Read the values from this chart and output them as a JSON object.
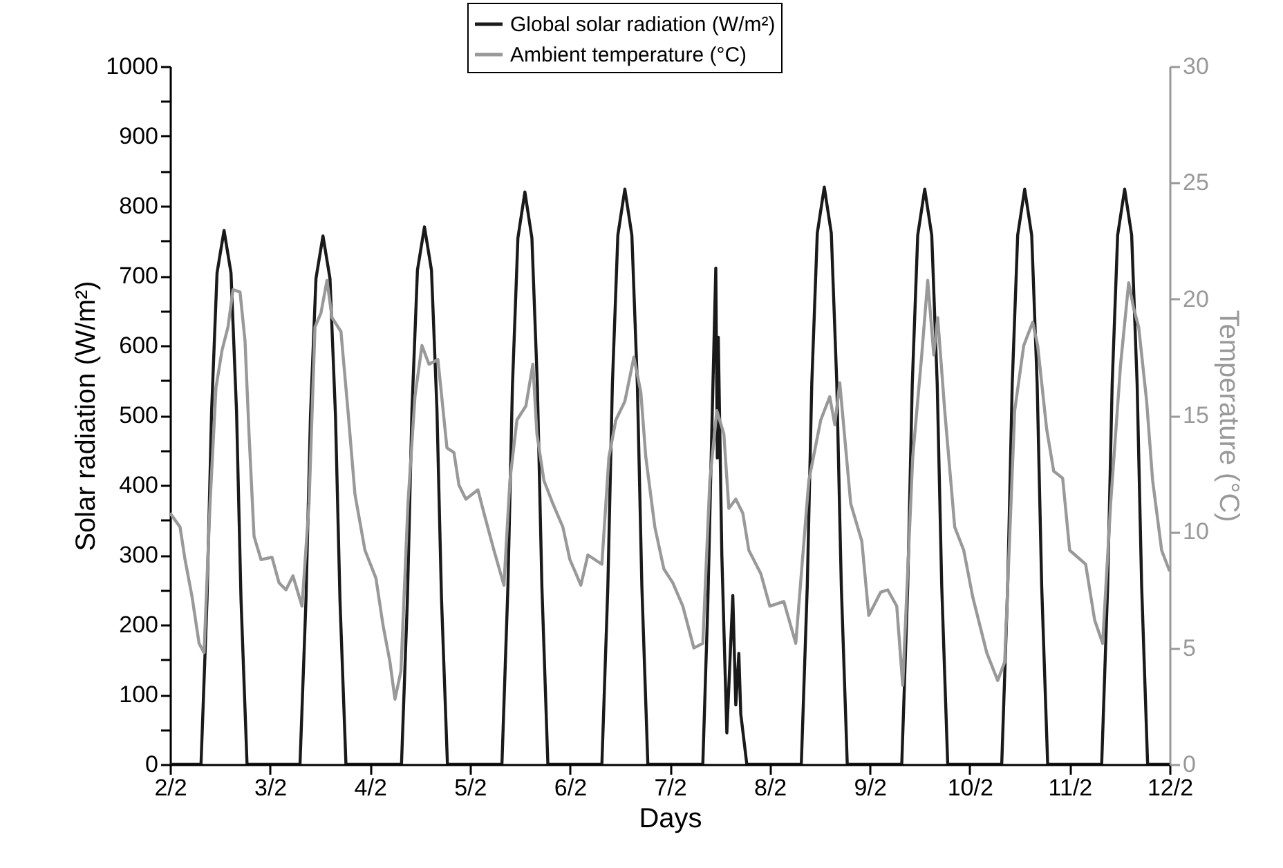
{
  "chart_data": {
    "type": "line",
    "xlabel": "Days",
    "ylabel": "Solar radiation (W/m²)",
    "y2label": "Temperature (°C)",
    "xlim": [
      "--02-02",
      "--02-12"
    ],
    "xticks": [
      {
        "value": "--02-02",
        "label": "2/2"
      },
      {
        "value": "--02-03",
        "label": "3/2"
      },
      {
        "value": "--02-04",
        "label": "4/2"
      },
      {
        "value": "--02-05",
        "label": "5/2"
      },
      {
        "value": "--02-06",
        "label": "6/2"
      },
      {
        "value": "--02-07",
        "label": "7/2"
      },
      {
        "value": "--02-08",
        "label": "8/2"
      },
      {
        "value": "--02-09",
        "label": "9/2"
      },
      {
        "value": "--02-10",
        "label": "10/2"
      },
      {
        "value": "--02-11",
        "label": "11/2"
      },
      {
        "value": "--02-12",
        "label": "12/2"
      }
    ],
    "ylim": [
      0,
      1000
    ],
    "yticks": [
      0,
      {
        "value": 50,
        "label": null
      },
      100,
      {
        "value": 150,
        "label": null
      },
      200,
      {
        "value": 250,
        "label": null
      },
      300,
      {
        "value": 350,
        "label": null
      },
      400,
      {
        "value": 450,
        "label": null
      },
      500,
      {
        "value": 550,
        "label": null
      },
      600,
      {
        "value": 650,
        "label": null
      },
      700,
      {
        "value": 750,
        "label": null
      },
      800,
      {
        "value": 850,
        "label": null
      },
      900,
      {
        "value": 950,
        "label": null
      },
      1000
    ],
    "y2lim": [
      0,
      30
    ],
    "y2ticks": [
      0,
      5,
      10,
      15,
      20,
      25,
      30
    ],
    "grid": false,
    "legend": "top",
    "marker": "none",
    "line_style": "solid",
    "series": [
      {
        "name": "Global solar radiation (W/m²)",
        "color": "#1a1a1a",
        "axis": "y",
        "x": [
          "--02-02T00:00",
          "--02-02T07:26",
          "--02-02T08:53",
          "--02-02T09:58",
          "--02-02T11:17",
          "--02-02T12:58",
          "--02-02T14:38",
          "--02-02T15:58",
          "--02-02T17:02",
          "--02-02T18:29",
          "--02-03T07:12",
          "--02-03T08:38",
          "--02-03T09:43",
          "--02-03T11:02",
          "--02-03T12:43",
          "--02-03T14:24",
          "--02-03T15:43",
          "--02-03T16:48",
          "--02-03T18:14",
          "--02-04T07:34",
          "--02-04T09:00",
          "--02-04T10:05",
          "--02-04T11:24",
          "--02-04T13:05",
          "--02-04T14:46",
          "--02-04T16:05",
          "--02-04T17:10",
          "--02-04T18:36",
          "--02-05T07:41",
          "--02-05T09:07",
          "--02-05T10:12",
          "--02-05T11:31",
          "--02-05T13:12",
          "--02-05T14:53",
          "--02-05T16:12",
          "--02-05T17:17",
          "--02-05T18:43",
          "--02-06T07:41",
          "--02-06T09:07",
          "--02-06T10:12",
          "--02-06T11:31",
          "--02-06T13:12",
          "--02-06T14:53",
          "--02-06T16:12",
          "--02-06T17:17",
          "--02-06T18:43",
          "--02-07T07:55",
          "--02-07T09:07",
          "--02-07T10:05",
          "--02-07T11:02",
          "--02-07T11:24",
          "--02-07T11:38",
          "--02-07T12:29",
          "--02-07T13:41",
          "--02-07T15:07",
          "--02-07T15:50",
          "--02-07T16:34",
          "--02-07T17:02",
          "--02-07T18:29",
          "--02-08T07:34",
          "--02-08T09:00",
          "--02-08T10:05",
          "--02-08T11:24",
          "--02-08T13:05",
          "--02-08T14:46",
          "--02-08T16:05",
          "--02-08T17:10",
          "--02-08T18:36",
          "--02-09T07:41",
          "--02-09T09:07",
          "--02-09T10:12",
          "--02-09T11:31",
          "--02-09T13:12",
          "--02-09T14:53",
          "--02-09T16:12",
          "--02-09T17:17",
          "--02-09T18:43",
          "--02-10T07:41",
          "--02-10T09:07",
          "--02-10T10:12",
          "--02-10T11:31",
          "--02-10T13:12",
          "--02-10T14:53",
          "--02-10T16:12",
          "--02-10T17:17",
          "--02-10T18:43",
          "--02-11T07:41",
          "--02-11T09:07",
          "--02-11T10:12",
          "--02-11T11:31",
          "--02-11T13:12",
          "--02-11T14:53",
          "--02-11T16:12",
          "--02-11T17:17",
          "--02-11T18:43",
          "--02-12T00:00"
        ],
        "values": [
          0,
          0,
          237,
          505,
          704,
          765,
          704,
          505,
          237,
          0,
          0,
          235,
          500,
          696,
          757,
          696,
          500,
          235,
          0,
          0,
          239,
          508,
          708,
          770,
          708,
          508,
          239,
          0,
          0,
          254,
          541,
          754,
          820,
          754,
          541,
          254,
          0,
          0,
          255,
          544,
          758,
          824,
          758,
          544,
          255,
          0,
          0,
          230,
          480,
          711,
          439,
          612,
          300,
          45,
          242,
          85,
          159,
          72,
          0,
          0,
          256,
          546,
          761,
          827,
          761,
          546,
          256,
          0,
          0,
          255,
          544,
          758,
          824,
          758,
          544,
          255,
          0,
          0,
          255,
          544,
          758,
          824,
          758,
          544,
          255,
          0,
          0,
          255,
          544,
          758,
          824,
          758,
          544,
          255,
          0,
          0
        ]
      },
      {
        "name": "Ambient temperature (°C)",
        "color": "#999999",
        "axis": "y2",
        "x": [
          "--02-02T00:00",
          "--02-02T02:24",
          "--02-02T03:36",
          "--02-02T05:17",
          "--02-02T06:58",
          "--02-02T08:10",
          "--02-02T09:36",
          "--02-02T11:02",
          "--02-02T12:29",
          "--02-02T13:55",
          "--02-02T15:07",
          "--02-02T16:48",
          "--02-02T18:00",
          "--02-02T18:58",
          "--02-02T20:10",
          "--02-02T21:50",
          "--02-03T00:29",
          "--02-03T02:10",
          "--02-03T03:50",
          "--02-03T05:31",
          "--02-03T07:41",
          "--02-03T09:22",
          "--02-03T10:48",
          "--02-03T12:14",
          "--02-03T13:41",
          "--02-03T14:53",
          "--02-03T17:02",
          "--02-03T18:43",
          "--02-03T20:24",
          "--02-03T22:48",
          "--02-04T01:26",
          "--02-04T03:07",
          "--02-04T04:48",
          "--02-04T06:00",
          "--02-04T07:26",
          "--02-04T09:07",
          "--02-04T10:48",
          "--02-04T12:29",
          "--02-04T14:10",
          "--02-04T16:19",
          "--02-04T18:29",
          "--02-04T20:10",
          "--02-04T21:22",
          "--02-04T23:02",
          "--02-05T01:55",
          "--02-05T03:22",
          "--02-05T05:46",
          "--02-05T08:10",
          "--02-05T09:36",
          "--02-05T11:17",
          "--02-05T13:26",
          "--02-05T15:07",
          "--02-05T16:05",
          "--02-05T17:46",
          "--02-05T19:55",
          "--02-05T22:19",
          "--02-06T00:00",
          "--02-06T00:58",
          "--02-06T02:38",
          "--02-06T04:19",
          "--02-06T07:41",
          "--02-06T09:22",
          "--02-06T11:02",
          "--02-06T13:12",
          "--02-06T15:22",
          "--02-06T17:02",
          "--02-06T18:14",
          "--02-06T20:24",
          "--02-06T22:34",
          "--02-07T00:43",
          "--02-07T03:07",
          "--02-07T05:46",
          "--02-07T07:55",
          "--02-07T09:36",
          "--02-07T11:17",
          "--02-07T12:58",
          "--02-07T14:10",
          "--02-07T15:50",
          "--02-07T17:31",
          "--02-07T18:58",
          "--02-07T21:50",
          "--02-08T00:00",
          "--02-08T03:22",
          "--02-08T06:14",
          "--02-08T09:22",
          "--02-08T12:14",
          "--02-08T14:24",
          "--02-08T15:36",
          "--02-08T16:48",
          "--02-08T19:26",
          "--02-08T22:05",
          "--02-08T23:46",
          "--02-09T02:38",
          "--02-09T04:19",
          "--02-09T06:29",
          "--02-09T07:55",
          "--02-09T10:19",
          "--02-09T12:29",
          "--02-09T13:55",
          "--02-09T15:22",
          "--02-09T16:19",
          "--02-09T18:00",
          "--02-09T20:24",
          "--02-09T22:34",
          "--02-10T00:43",
          "--02-10T04:05",
          "--02-10T06:43",
          "--02-10T08:24",
          "--02-10T10:48",
          "--02-10T12:58",
          "--02-10T15:07",
          "--02-10T16:19",
          "--02-10T18:29",
          "--02-10T20:10",
          "--02-10T22:19",
          "--02-11T00:00",
          "--02-11T03:50",
          "--02-11T06:00",
          "--02-11T07:55",
          "--02-11T09:50",
          "--02-11T12:14",
          "--02-11T14:10",
          "--02-11T15:22",
          "--02-11T16:34",
          "--02-11T18:29",
          "--02-11T19:55",
          "--02-11T22:05",
          "--02-12T00:00"
        ],
        "values": [
          10.8,
          10.2,
          8.8,
          7.2,
          5.2,
          4.8,
          11.2,
          16.2,
          17.8,
          18.8,
          20.4,
          20.3,
          18.2,
          14.2,
          9.8,
          8.8,
          8.9,
          7.8,
          7.5,
          8.1,
          6.8,
          11.2,
          18.8,
          19.4,
          20.8,
          19.2,
          18.6,
          15.2,
          11.6,
          9.2,
          8,
          6,
          4.4,
          2.8,
          4,
          11.2,
          15.8,
          18,
          17.2,
          17.4,
          13.6,
          13.4,
          12,
          11.4,
          11.8,
          10.8,
          9.2,
          7.7,
          12.2,
          14.8,
          15.4,
          17.2,
          14.2,
          12.2,
          11.2,
          10.2,
          8.8,
          8.4,
          7.7,
          9,
          8.6,
          13.2,
          14.8,
          15.6,
          17.5,
          16,
          13.2,
          10.2,
          8.4,
          7.8,
          6.8,
          5,
          5.2,
          12.2,
          15.2,
          14.2,
          11,
          11.4,
          10.8,
          9.2,
          8.2,
          6.8,
          7,
          5.2,
          12.2,
          14.8,
          15.8,
          14.6,
          16.4,
          11.2,
          9.6,
          6.4,
          7.4,
          7.5,
          6.8,
          3.4,
          13.2,
          17.6,
          20.8,
          17.6,
          19.2,
          15.2,
          10.2,
          9.2,
          7.2,
          4.8,
          3.6,
          4.4,
          15.2,
          18,
          19,
          18,
          14.4,
          12.6,
          12.3,
          9.2,
          8.6,
          6.2,
          5.2,
          11.2,
          17.2,
          20.7,
          19.6,
          18.8,
          15.6,
          12.2,
          9.2,
          8.3
        ]
      }
    ]
  }
}
